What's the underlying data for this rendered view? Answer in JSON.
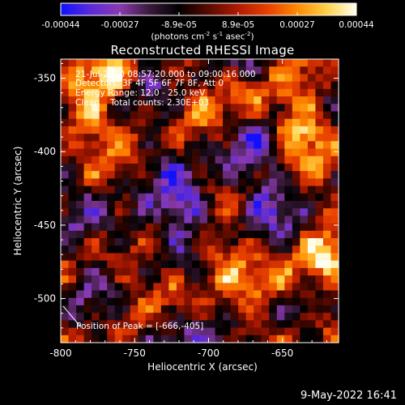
{
  "colorbar": {
    "tick_labels": [
      "-0.00044",
      "-0.00027",
      "-8.9e-05",
      "8.9e-05",
      "0.00027",
      "0.00044"
    ],
    "units": {
      "prefix": "(photons cm",
      "exp1": "-2",
      "s": " s",
      "exp2": "-1",
      "asec": " asec",
      "exp3": "-2",
      "suffix": ")"
    },
    "colors": [
      "#1010ff",
      "#5a2ad8",
      "#8a3ab0",
      "#3a1a3a",
      "#000000",
      "#5a0a00",
      "#b01a00",
      "#e84000",
      "#ff8a00",
      "#ffd24a",
      "#fffff0"
    ]
  },
  "title": "Reconstructed RHESSI Image",
  "info": {
    "line1": "21-Jul-2010 08:57:20.000 to 09:00:16.000",
    "line2": "Detectors: 3F 4F 5F 6F 7F 8F, Att 0",
    "line3": "Energy Range: 12.0 - 25.0 keV",
    "line4": "Clean    Total counts: 2.30E+03"
  },
  "peak_label": "Position of Peak = [-666,-405]",
  "timestamp": "9-May-2022 16:41",
  "chart_data": {
    "type": "heatmap",
    "xlabel": "Heliocentric X (arcsec)",
    "ylabel": "Heliocentric Y (arcsec)",
    "xlim": [
      -800,
      -612
    ],
    "ylim": [
      -530,
      -337
    ],
    "x_ticks": [
      -800,
      -750,
      -700,
      -650
    ],
    "y_ticks": [
      -350,
      -400,
      -450,
      -500
    ],
    "x_tick_labels": [
      "-800",
      "-750",
      "-700",
      "-650"
    ],
    "y_tick_labels": [
      "-350",
      "-400",
      "-450",
      "-500"
    ],
    "peak": [
      -666,
      -405
    ],
    "value_range": [
      -0.00044,
      0.00044
    ],
    "grid": false
  }
}
